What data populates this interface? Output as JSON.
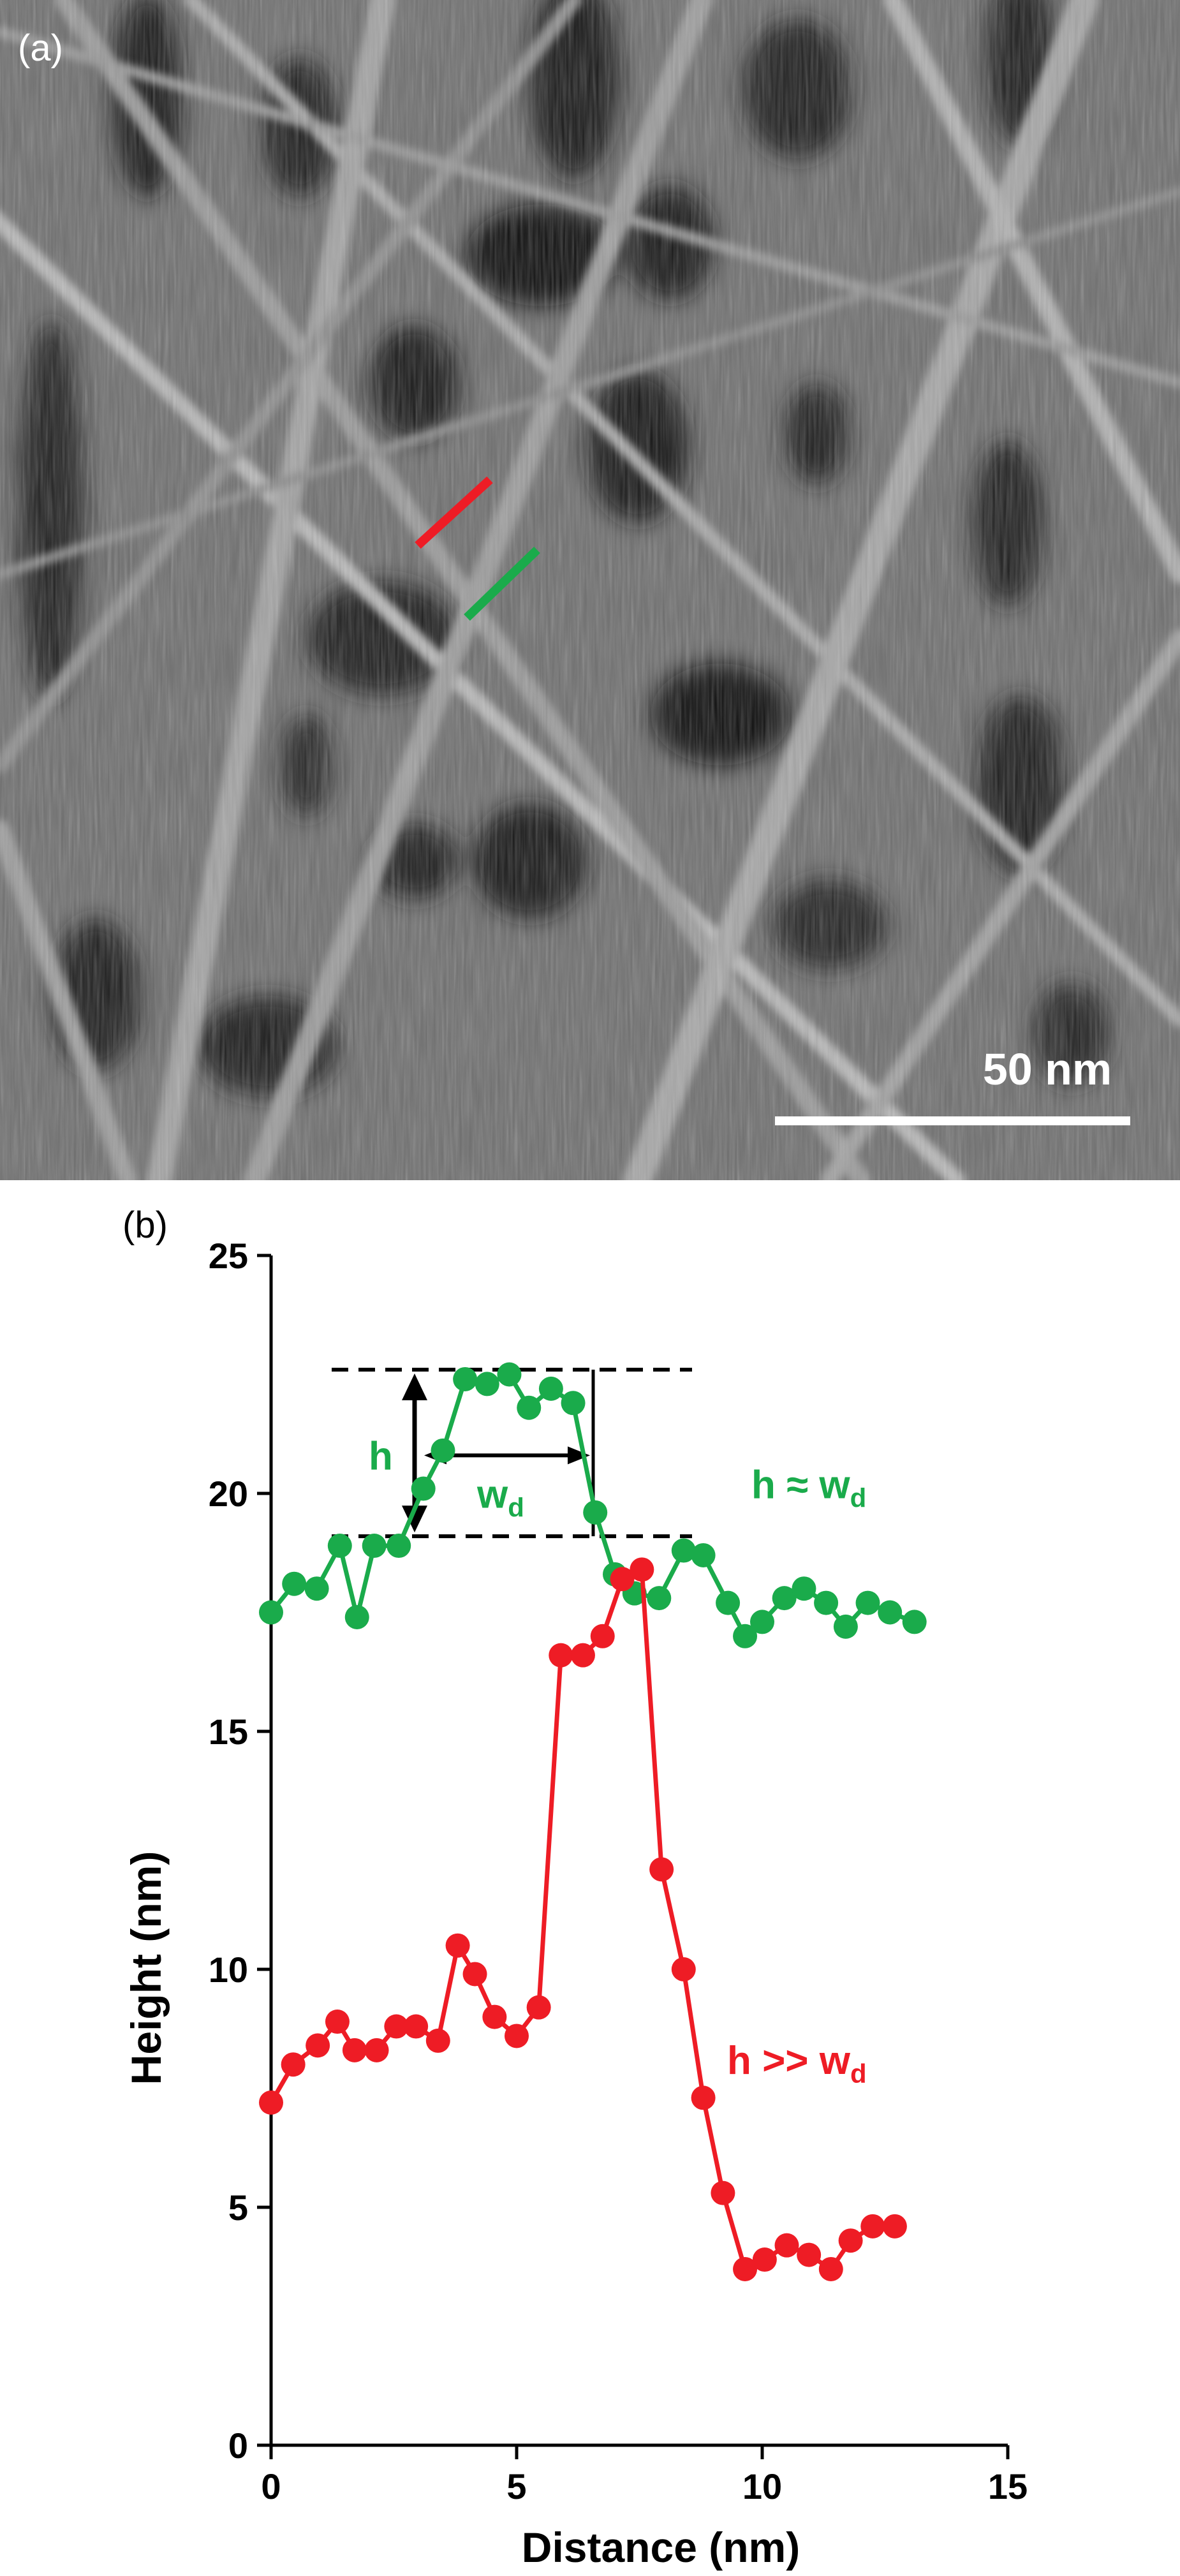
{
  "panel_a": {
    "label": "(a)",
    "scale_bar_label": "50 nm",
    "colors": {
      "red_line": "#ee1c25",
      "green_line": "#1aab4b",
      "scale_bar": "#ffffff"
    }
  },
  "panel_b": {
    "label": "(b)"
  },
  "chart_data": {
    "type": "line",
    "xlabel": "Distance (nm)",
    "ylabel": "Height (nm)",
    "xlim": [
      0,
      15
    ],
    "ylim": [
      0,
      25
    ],
    "xticks": [
      0,
      5,
      10,
      15
    ],
    "yticks": [
      0,
      5,
      10,
      15,
      20,
      25
    ],
    "grid": false,
    "series": [
      {
        "color": "#1aab4b",
        "x": [
          0,
          0.47,
          0.93,
          1.4,
          1.75,
          2.1,
          2.6,
          3.1,
          3.5,
          3.95,
          4.4,
          4.85,
          5.25,
          5.7,
          6.15,
          6.6,
          7.0,
          7.4,
          7.9,
          8.4,
          8.8,
          9.3,
          9.65,
          10.0,
          10.45,
          10.85,
          11.3,
          11.7,
          12.15,
          12.6,
          13.1
        ],
        "y": [
          17.5,
          18.1,
          18.0,
          18.9,
          17.4,
          18.9,
          18.9,
          20.1,
          20.9,
          22.4,
          22.3,
          22.5,
          21.8,
          22.2,
          21.9,
          19.6,
          18.3,
          17.9,
          17.8,
          18.8,
          18.7,
          17.7,
          17.0,
          17.3,
          17.8,
          18.0,
          17.7,
          17.2,
          17.7,
          17.5,
          17.3
        ]
      },
      {
        "color": "#ee1c25",
        "x": [
          0,
          0.45,
          0.95,
          1.35,
          1.7,
          2.15,
          2.55,
          2.95,
          3.4,
          3.8,
          4.15,
          4.55,
          5.0,
          5.45,
          5.9,
          6.35,
          6.75,
          7.15,
          7.55,
          7.95,
          8.4,
          8.8,
          9.2,
          9.65,
          10.05,
          10.5,
          10.95,
          11.4,
          11.8,
          12.25,
          12.7
        ],
        "y": [
          7.2,
          8.0,
          8.4,
          8.9,
          8.3,
          8.3,
          8.8,
          8.8,
          8.5,
          10.5,
          9.9,
          9.0,
          8.6,
          9.2,
          16.6,
          16.6,
          17.0,
          18.2,
          18.4,
          12.1,
          10.0,
          7.3,
          5.3,
          3.7,
          3.9,
          4.2,
          4.0,
          3.7,
          4.3,
          4.6,
          4.6
        ]
      }
    ],
    "annotations": {
      "green_label": "h ≈ w",
      "green_sub": "d",
      "red_label": "h >> w",
      "red_sub": "d",
      "h_label": "h",
      "wd_label": "w",
      "wd_sub": "d",
      "dashed_levels": [
        22.6,
        19.1
      ]
    }
  }
}
